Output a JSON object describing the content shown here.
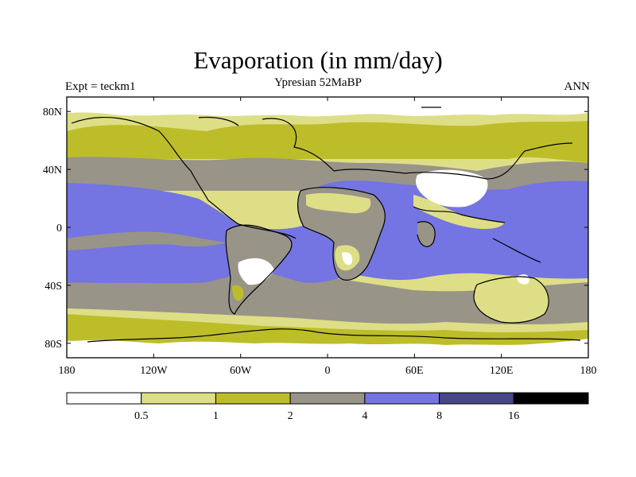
{
  "header": {
    "title": "Evaporation (in mm/day)",
    "subtitle": "Ypresian  52MaBP",
    "left_label": "Expt = teckm1",
    "right_label": "ANN"
  },
  "axes": {
    "lat_labels": [
      {
        "lat": 80,
        "text": "80N"
      },
      {
        "lat": 40,
        "text": "40N"
      },
      {
        "lat": 0,
        "text": "0"
      },
      {
        "lat": -40,
        "text": "40S"
      },
      {
        "lat": -80,
        "text": "80S"
      }
    ],
    "lon_labels": [
      {
        "lon": -180,
        "text": "180"
      },
      {
        "lon": -120,
        "text": "120W"
      },
      {
        "lon": -60,
        "text": "60W"
      },
      {
        "lon": 0,
        "text": "0"
      },
      {
        "lon": 60,
        "text": "60E"
      },
      {
        "lon": 120,
        "text": "120E"
      },
      {
        "lon": 180,
        "text": "180"
      }
    ]
  },
  "colorbar": {
    "bins": [
      {
        "color": "#ffffff"
      },
      {
        "color": "#dede86"
      },
      {
        "color": "#bdbd2a"
      },
      {
        "color": "#999488"
      },
      {
        "color": "#7474e2"
      },
      {
        "color": "#464688"
      },
      {
        "color": "#000000"
      }
    ],
    "labels": [
      "0.5",
      "1",
      "2",
      "4",
      "8",
      "16"
    ]
  },
  "colors": {
    "white": "#ffffff",
    "light_olive": "#dede86",
    "olive": "#bdbd2a",
    "gray": "#999488",
    "blue": "#7474e2"
  }
}
